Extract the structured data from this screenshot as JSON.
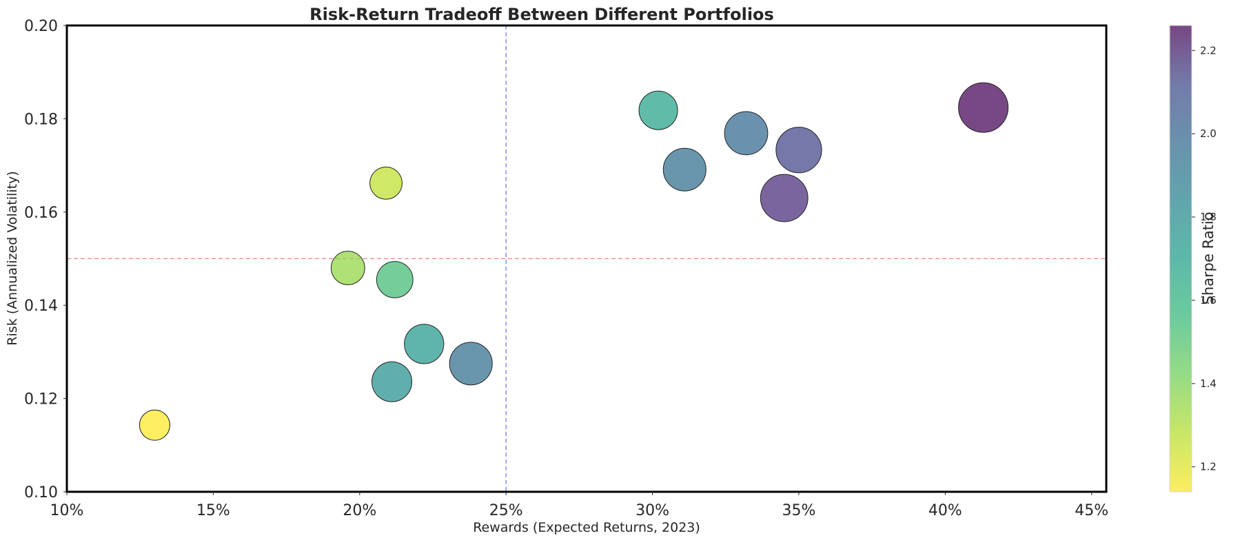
{
  "chart_data": {
    "type": "scatter",
    "title": "Risk-Return Tradeoff Between Different Portfolios",
    "xlabel": "Rewards (Expected Returns, 2023)",
    "ylabel": "Risk (Annualized Volatility)",
    "xlim": [
      0.1,
      0.455
    ],
    "ylim": [
      0.1,
      0.2
    ],
    "xticks": [
      0.1,
      0.15,
      0.2,
      0.25,
      0.3,
      0.35,
      0.4,
      0.45
    ],
    "xtick_labels": [
      "10%",
      "15%",
      "20%",
      "25%",
      "30%",
      "35%",
      "40%",
      "45%"
    ],
    "yticks": [
      0.1,
      0.12,
      0.14,
      0.16,
      0.18,
      0.2
    ],
    "ytick_labels": [
      "0.10",
      "0.12",
      "0.14",
      "0.16",
      "0.18",
      "0.20"
    ],
    "reference_lines": {
      "vertical_x": 0.25,
      "vertical_color": "#6b7ff0",
      "horizontal_y": 0.15,
      "horizontal_color": "#f08080"
    },
    "grid": false,
    "colormap": "viridis_r",
    "colorbar": {
      "label": "Sharpe Ratio",
      "range": [
        1.14,
        2.26
      ],
      "ticks": [
        1.2,
        1.4,
        1.6,
        1.8,
        2.0,
        2.2
      ],
      "tick_labels": [
        "1.2",
        "1.4",
        "1.6",
        "1.8",
        "2.0",
        "2.2"
      ]
    },
    "points": [
      {
        "x": 0.13,
        "y": 0.1143,
        "sharpe": 1.14
      },
      {
        "x": 0.196,
        "y": 0.148,
        "sharpe": 1.33
      },
      {
        "x": 0.209,
        "y": 0.1662,
        "sharpe": 1.25
      },
      {
        "x": 0.212,
        "y": 0.1455,
        "sharpe": 1.49
      },
      {
        "x": 0.211,
        "y": 0.1236,
        "sharpe": 1.7
      },
      {
        "x": 0.222,
        "y": 0.1317,
        "sharpe": 1.67
      },
      {
        "x": 0.238,
        "y": 0.1275,
        "sharpe": 1.86
      },
      {
        "x": 0.302,
        "y": 0.1818,
        "sharpe": 1.62
      },
      {
        "x": 0.311,
        "y": 0.1691,
        "sharpe": 1.86
      },
      {
        "x": 0.332,
        "y": 0.1769,
        "sharpe": 1.89
      },
      {
        "x": 0.35,
        "y": 0.1733,
        "sharpe": 2.03
      },
      {
        "x": 0.345,
        "y": 0.163,
        "sharpe": 2.13
      },
      {
        "x": 0.413,
        "y": 0.1824,
        "sharpe": 2.26
      }
    ]
  }
}
